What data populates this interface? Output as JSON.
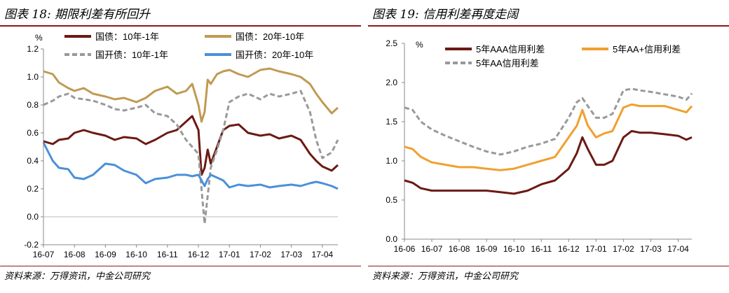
{
  "left_panel": {
    "figure_title": "图表 18: 期限利差有所回升",
    "source": "资料来源：万得资讯，中金公司研究"
  },
  "right_panel": {
    "figure_title": "图表 19: 信用利差再度走阔",
    "source": "资料来源：万得资讯，中金公司研究"
  },
  "chart_data": [
    {
      "type": "line",
      "title": "期限利差有所回升",
      "ylabel": "%",
      "xlabel": "",
      "ylim": [
        -0.2,
        1.2
      ],
      "yticks": [
        "1.2",
        "1.0",
        "0.8",
        "0.6",
        "0.4",
        "0.2",
        "0.0",
        "-0.2"
      ],
      "ytick_values": [
        1.2,
        1.0,
        0.8,
        0.6,
        0.4,
        0.2,
        0.0,
        -0.2
      ],
      "categories": [
        "16-07",
        "16-08",
        "16-09",
        "16-10",
        "16-11",
        "16-12",
        "17-01",
        "17-02",
        "17-03",
        "17-04"
      ],
      "x": [
        0,
        0.3,
        0.5,
        0.8,
        1.0,
        1.3,
        1.6,
        2.0,
        2.3,
        2.6,
        3.0,
        3.3,
        3.6,
        4.0,
        4.3,
        4.6,
        4.8,
        5.0,
        5.1,
        5.2,
        5.3,
        5.4,
        5.6,
        5.8,
        6.0,
        6.3,
        6.6,
        7.0,
        7.3,
        7.6,
        8.0,
        8.3,
        8.6,
        8.8,
        9.0,
        9.3,
        9.5
      ],
      "series": [
        {
          "name": "国债：10年-1年",
          "color": "#6b1a14",
          "dash": false,
          "values": [
            0.54,
            0.52,
            0.55,
            0.56,
            0.6,
            0.62,
            0.6,
            0.58,
            0.55,
            0.57,
            0.56,
            0.52,
            0.55,
            0.6,
            0.62,
            0.68,
            0.72,
            0.62,
            0.3,
            0.35,
            0.48,
            0.38,
            0.5,
            0.62,
            0.65,
            0.66,
            0.6,
            0.58,
            0.59,
            0.56,
            0.58,
            0.55,
            0.45,
            0.4,
            0.36,
            0.33,
            0.37
          ]
        },
        {
          "name": "国债：20年-10年",
          "color": "#c09a52",
          "dash": false,
          "values": [
            1.04,
            1.02,
            0.96,
            0.92,
            0.9,
            0.92,
            0.88,
            0.86,
            0.84,
            0.85,
            0.82,
            0.85,
            0.9,
            0.93,
            0.88,
            0.9,
            0.95,
            0.8,
            0.68,
            0.75,
            0.98,
            0.95,
            1.02,
            1.04,
            1.05,
            1.02,
            1.0,
            1.05,
            1.06,
            1.04,
            1.02,
            1.0,
            0.95,
            0.88,
            0.82,
            0.74,
            0.78
          ]
        },
        {
          "name": "国开债：10年-1年",
          "color": "#999999",
          "dash": true,
          "values": [
            0.8,
            0.83,
            0.86,
            0.88,
            0.85,
            0.84,
            0.83,
            0.8,
            0.77,
            0.76,
            0.78,
            0.8,
            0.74,
            0.72,
            0.66,
            0.55,
            0.5,
            0.45,
            0.2,
            -0.05,
            0.15,
            0.35,
            0.48,
            0.62,
            0.82,
            0.86,
            0.88,
            0.84,
            0.88,
            0.86,
            0.88,
            0.9,
            0.75,
            0.55,
            0.42,
            0.46,
            0.55
          ]
        },
        {
          "name": "国开债：20年-10年",
          "color": "#4a90d9",
          "dash": false,
          "values": [
            0.53,
            0.4,
            0.35,
            0.34,
            0.28,
            0.27,
            0.3,
            0.38,
            0.37,
            0.33,
            0.3,
            0.24,
            0.27,
            0.28,
            0.3,
            0.3,
            0.29,
            0.3,
            0.26,
            0.22,
            0.27,
            0.3,
            0.28,
            0.26,
            0.21,
            0.23,
            0.22,
            0.23,
            0.21,
            0.22,
            0.23,
            0.22,
            0.24,
            0.25,
            0.24,
            0.22,
            0.2
          ]
        }
      ],
      "legend": "top"
    },
    {
      "type": "line",
      "title": "信用利差再度走阔",
      "ylabel": "%",
      "xlabel": "",
      "ylim": [
        0.0,
        2.5
      ],
      "yticks": [
        "2.5",
        "2.0",
        "1.5",
        "1.0",
        "0.5",
        "0.0"
      ],
      "ytick_values": [
        2.5,
        2.0,
        1.5,
        1.0,
        0.5,
        0.0
      ],
      "categories": [
        "16-06",
        "16-07",
        "16-08",
        "16-09",
        "16-10",
        "16-11",
        "16-12",
        "17-01",
        "17-02",
        "17-03",
        "17-04"
      ],
      "x": [
        0,
        0.3,
        0.6,
        1.0,
        1.5,
        2.0,
        2.5,
        3.0,
        3.5,
        4.0,
        4.5,
        5.0,
        5.5,
        6.0,
        6.3,
        6.5,
        6.7,
        7.0,
        7.3,
        7.6,
        8.0,
        8.3,
        8.6,
        9.0,
        9.5,
        10.0,
        10.3,
        10.5
      ],
      "series": [
        {
          "name": "5年AAA信用利差",
          "color": "#6b1a14",
          "dash": false,
          "values": [
            0.75,
            0.72,
            0.65,
            0.62,
            0.62,
            0.62,
            0.62,
            0.62,
            0.6,
            0.58,
            0.62,
            0.7,
            0.75,
            0.9,
            1.1,
            1.3,
            1.15,
            0.95,
            0.95,
            1.0,
            1.3,
            1.38,
            1.36,
            1.36,
            1.34,
            1.32,
            1.27,
            1.3
          ]
        },
        {
          "name": "5年AA+信用利差",
          "color": "#f0a030",
          "dash": false,
          "values": [
            1.18,
            1.15,
            1.05,
            0.98,
            0.95,
            0.92,
            0.92,
            0.9,
            0.88,
            0.9,
            0.95,
            1.0,
            1.05,
            1.3,
            1.45,
            1.65,
            1.45,
            1.3,
            1.35,
            1.38,
            1.68,
            1.72,
            1.7,
            1.7,
            1.7,
            1.65,
            1.62,
            1.7
          ]
        },
        {
          "name": "5年AA信用利差",
          "color": "#999999",
          "dash": true,
          "values": [
            1.68,
            1.65,
            1.5,
            1.4,
            1.32,
            1.25,
            1.18,
            1.12,
            1.08,
            1.12,
            1.18,
            1.22,
            1.28,
            1.55,
            1.75,
            1.8,
            1.7,
            1.55,
            1.55,
            1.6,
            1.9,
            1.92,
            1.9,
            1.88,
            1.85,
            1.82,
            1.78,
            1.86
          ]
        }
      ],
      "legend": "top"
    }
  ]
}
